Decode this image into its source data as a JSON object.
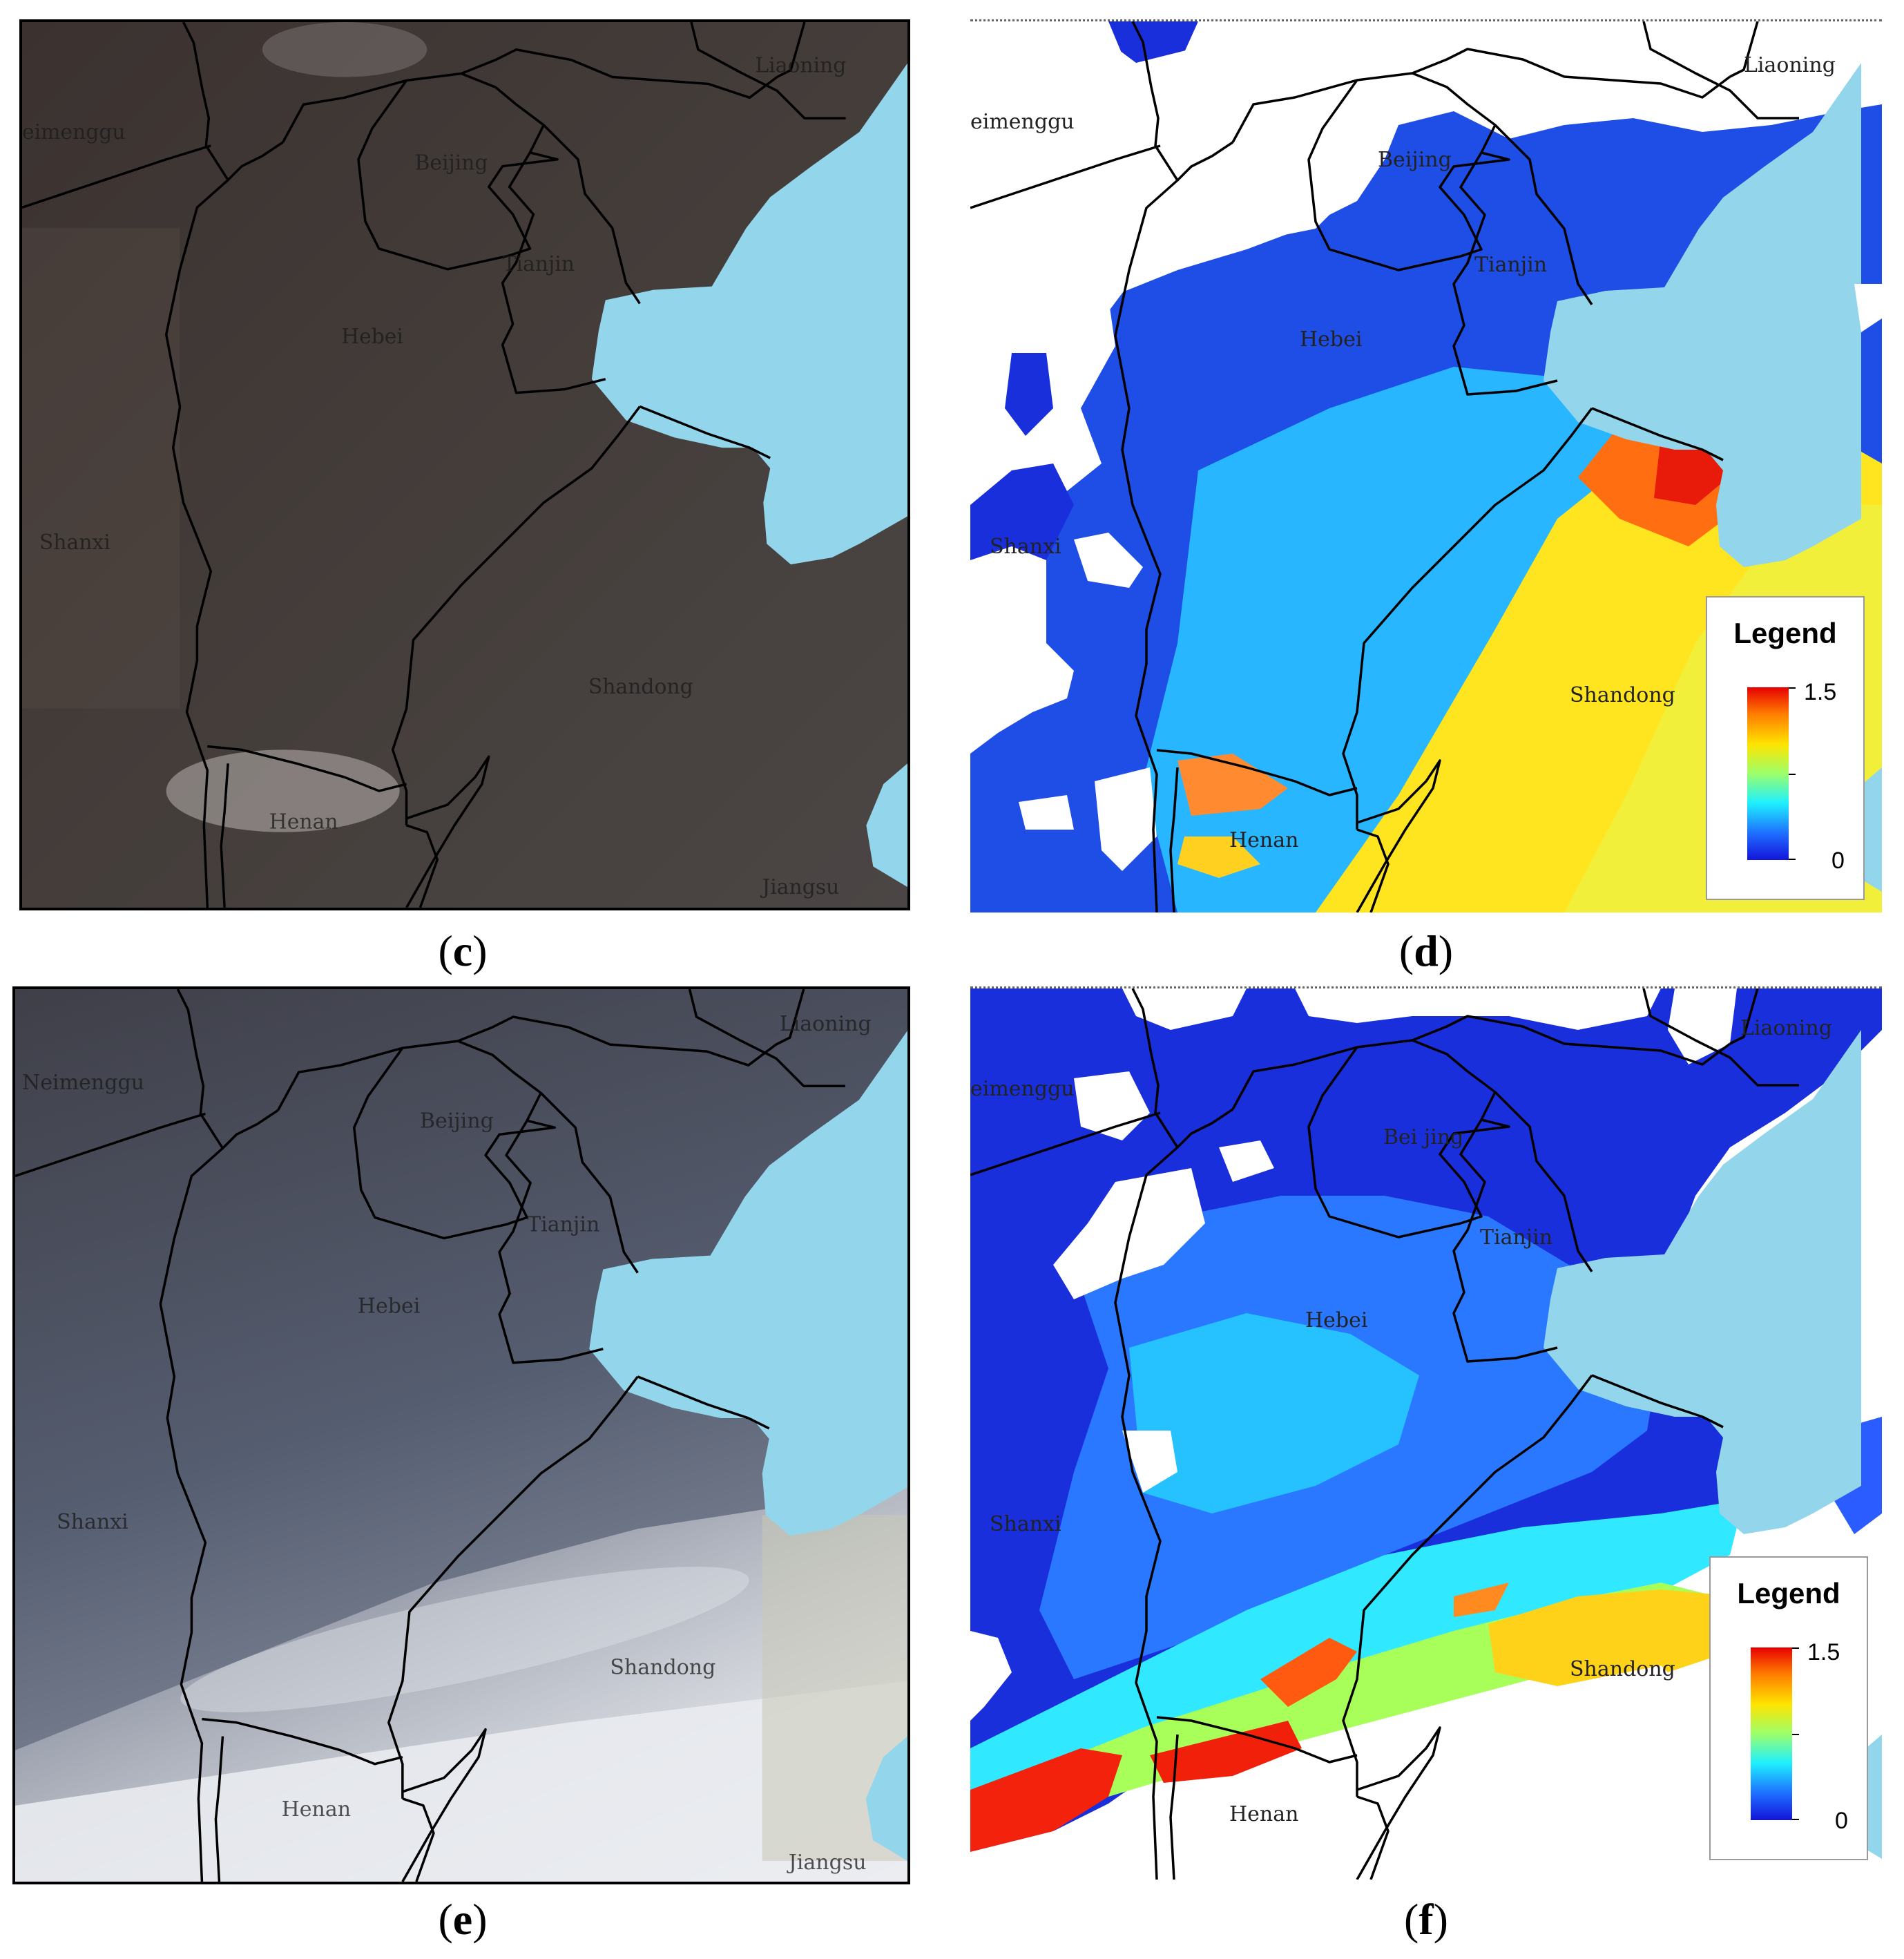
{
  "panels": {
    "c": {
      "caption_letter": "c",
      "kind": "true-color"
    },
    "d": {
      "caption_letter": "d",
      "kind": "aod-map"
    },
    "e": {
      "caption_letter": "e",
      "kind": "true-color"
    },
    "f": {
      "caption_letter": "f",
      "kind": "aod-map"
    }
  },
  "provinces": {
    "neimenggu": "Neimenggu",
    "beijing": "Beijing",
    "tianjin": "Tianjin",
    "hebei": "Hebei",
    "shanxi": "Shanxi",
    "shandong": "Shandong",
    "henan": "Henan",
    "liaoning": "Liaoning",
    "jiangsu": "Jiangsu",
    "neimenggu_cut": "eimenggu",
    "beijing_spaced": "Bei jing",
    "jiangsu_cut": "Jiangsu"
  },
  "legend": {
    "title": "Legend",
    "max": "1.5",
    "min": "0"
  },
  "colors": {
    "sea": "#93d6ec",
    "aod_low": "#1414d9",
    "aod_mid": "#1ef0ff",
    "aod_high": "#ffe400",
    "aod_max": "#e60000",
    "rgb_haze_dark": "#3c3431",
    "rgb_haze_blue": "#4a5161"
  }
}
